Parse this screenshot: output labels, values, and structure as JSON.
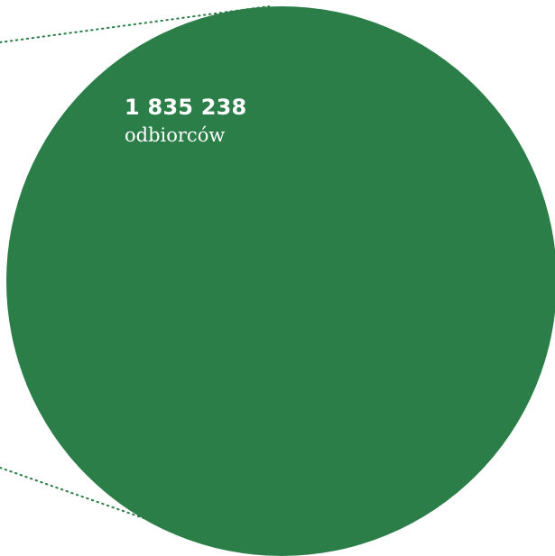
{
  "colors": {
    "bubble_fill": "#2b7e48",
    "connector": "#2b7e48",
    "label_text": "#ffffff"
  },
  "chart_data": {
    "type": "bubble",
    "title": "",
    "values": [
      1835238
    ],
    "labels": {
      "value_text": "1 835 238",
      "unit": "odbiorców"
    },
    "connector_style": "dotted"
  }
}
